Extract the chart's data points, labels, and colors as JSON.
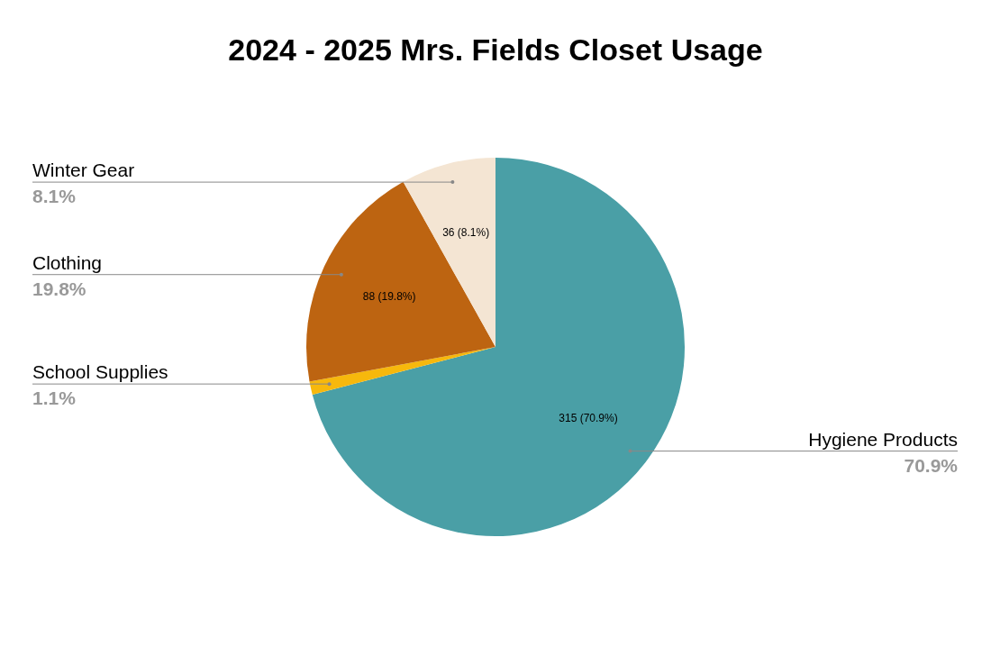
{
  "chart_data": {
    "type": "pie",
    "title": "2024 - 2025 Mrs. Fields Closet Usage",
    "categories": [
      "Hygiene Products",
      "School Supplies",
      "Clothing",
      "Winter Gear"
    ],
    "values": [
      315,
      5,
      88,
      36
    ],
    "colors": [
      "#4a9fa6",
      "#f7b80c",
      "#bd6411",
      "#f4e5d3"
    ],
    "value_labels": [
      "315 (70.9%)",
      null,
      "88 (19.8%)",
      "36 (8.1%)"
    ],
    "annotations": [
      "70.9%",
      "1.1%",
      "19.8%",
      "8.1%"
    ],
    "legend": false
  }
}
